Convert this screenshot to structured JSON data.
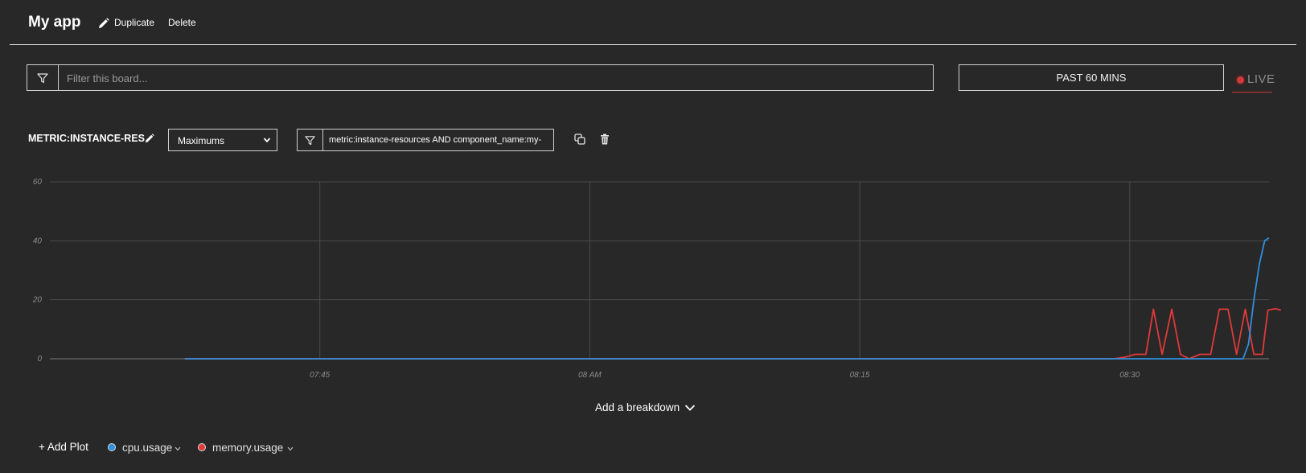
{
  "header": {
    "title": "My app",
    "duplicate_label": "Duplicate",
    "delete_label": "Delete"
  },
  "filter": {
    "placeholder": "Filter this board...",
    "value": ""
  },
  "time_range": {
    "label": "PAST 60 MINS"
  },
  "live": {
    "label": "LIVE"
  },
  "plot": {
    "title": "METRIC:INSTANCE-RES",
    "aggregation": "Maximums",
    "query": "metric:instance-resources AND component_name:my-"
  },
  "chart_data": {
    "type": "line",
    "y_ticks": [
      "0",
      "20",
      "40",
      "60"
    ],
    "ylim": [
      0,
      60
    ],
    "x_ticks": [
      "07:45",
      "08 AM",
      "08:15",
      "08:30"
    ],
    "grid": true,
    "series": [
      {
        "name": "cpu.usage",
        "color": "#2f8fe0",
        "points": [
          [
            0,
            0
          ],
          [
            94,
            0
          ],
          [
            96,
            0
          ],
          [
            98,
            0
          ],
          [
            98.5,
            5
          ],
          [
            99,
            20
          ],
          [
            99.5,
            32
          ],
          [
            100,
            40
          ],
          [
            100.4,
            41
          ]
        ]
      },
      {
        "name": "memory.usage",
        "color": "#e03a3a",
        "points": [
          [
            0,
            0
          ],
          [
            86,
            0
          ],
          [
            87,
            0.5
          ],
          [
            88,
            1.5
          ],
          [
            89,
            1.5
          ],
          [
            89.7,
            16.8
          ],
          [
            90.5,
            1.5
          ],
          [
            91.4,
            16.8
          ],
          [
            92.2,
            1.5
          ],
          [
            93,
            0
          ],
          [
            94,
            1.5
          ],
          [
            95,
            1.5
          ],
          [
            95.8,
            16.8
          ],
          [
            96.6,
            16.8
          ],
          [
            97.4,
            1.5
          ],
          [
            98.2,
            16.8
          ],
          [
            99,
            1.5
          ],
          [
            99.8,
            1.5
          ],
          [
            100,
            8
          ],
          [
            100.3,
            16.5
          ],
          [
            101,
            17
          ],
          [
            101.5,
            16.5
          ]
        ]
      }
    ]
  },
  "breakdown": {
    "label": "Add a breakdown"
  },
  "legend": {
    "add_plot_label": "+ Add Plot",
    "items": [
      {
        "label": "cpu.usage",
        "color": "#2f8fe0"
      },
      {
        "label": "memory.usage",
        "color": "#e03a3a"
      }
    ]
  }
}
